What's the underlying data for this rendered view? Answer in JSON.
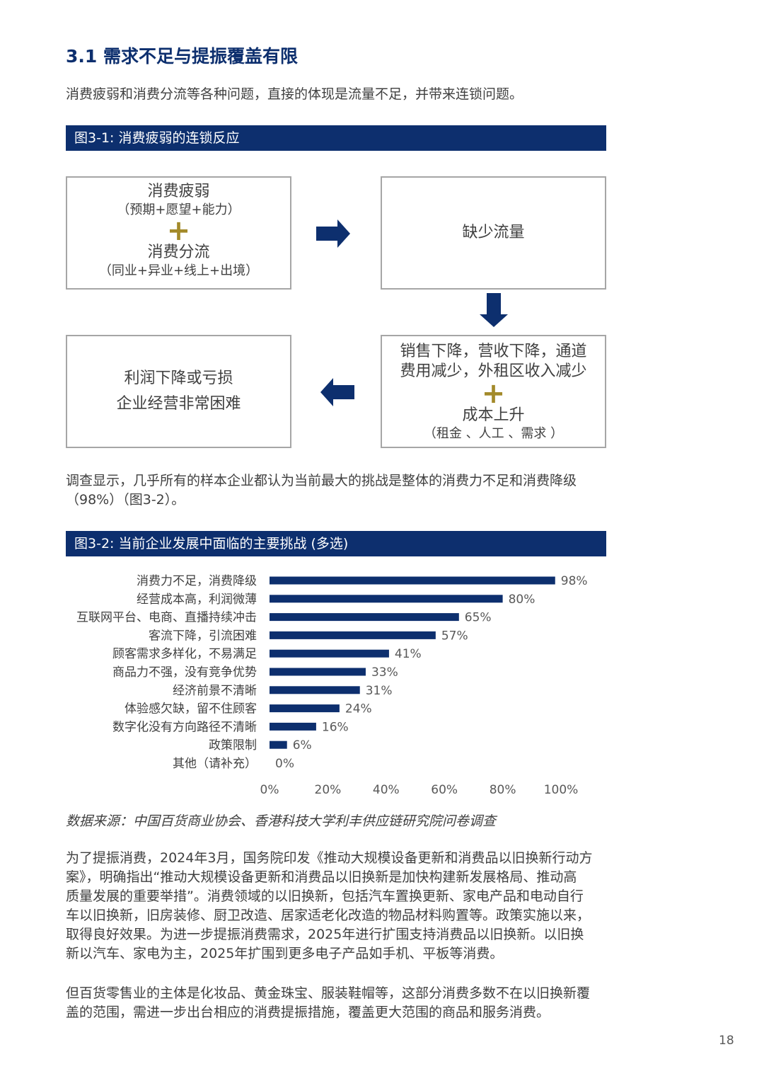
{
  "section_title": "3.1 需求不足与提振覆盖有限",
  "intro": "消费疲弱和消费分流等各种问题，直接的体现是流量不足，并带来连锁问题。",
  "figure1": {
    "header": "图3-1: 消费疲弱的连锁反应",
    "box1": {
      "line1": "消费疲弱",
      "line2": "（预期+愿望+能力）",
      "plus": "+",
      "line3": "消费分流",
      "line4": "（同业+异业+线上+出境）"
    },
    "box2": {
      "text": "缺少流量"
    },
    "box3": {
      "line1": "销售下降，营收下降，通道",
      "line2": "费用减少，外租区收入减少",
      "plus": "+",
      "line3": "成本上升",
      "line4": "（租金 、人工 、需求 ）"
    },
    "box4": {
      "line1": "利润下降或亏损",
      "line2": "企业经营非常困难"
    },
    "arrow_color": "#0d2f6e"
  },
  "survey_text": {
    "line1": "调查显示，几乎所有的样本企业都认为当前最大的挑战是整体的消费力不足和消费降级",
    "line2": "（98%）（图3-2）。"
  },
  "figure2": {
    "header": "图3-2: 当前企业发展中面临的主要挑战 (多选)"
  },
  "chart_data": {
    "type": "bar",
    "orientation": "horizontal",
    "categories": [
      "消费力不足，消费降级",
      "经营成本高，利润微薄",
      "互联网平台、电商、直播持续冲击",
      "客流下降，引流困难",
      "顾客需求多样化，不易满足",
      "商品力不强，没有竞争优势",
      "经济前景不清晰",
      "体验感欠缺，留不住顾客",
      "数字化没有方向路径不清晰",
      "政策限制",
      "其他（请补充）"
    ],
    "values": [
      98,
      80,
      65,
      57,
      41,
      33,
      31,
      24,
      16,
      6,
      0
    ],
    "value_labels": [
      "98%",
      "80%",
      "65%",
      "57%",
      "41%",
      "33%",
      "31%",
      "24%",
      "16%",
      "6%",
      "0%"
    ],
    "xlim": [
      0,
      100
    ],
    "x_ticks": [
      "0%",
      "20%",
      "40%",
      "60%",
      "80%",
      "100%"
    ],
    "x_tick_values": [
      0,
      20,
      40,
      60,
      80,
      100
    ],
    "bar_color": "#0d2f6e",
    "grid": false,
    "legend": "none"
  },
  "source_note": "数据来源：中国百货商业协会、香港科技大学利丰供应链研究院问卷调查",
  "para2": [
    "为了提振消费，2024年3月，国务院印发《推动大规模设备更新和消费品以旧换新行动方",
    "案》，明确指出“推动大规模设备更新和消费品以旧换新是加快构建新发展格局、推动高",
    "质量发展的重要举措”。消费领域的以旧换新，包括汽车置换更新、家电产品和电动自行",
    "车以旧换新，旧房装修、厨卫改造、居家适老化改造的物品材料购置等。政策实施以来，",
    "取得良好效果。为进一步提振消费需求，2025年进行扩围支持消费品以旧换新。以旧换",
    "新以汽车、家电为主，2025年扩围到更多电子产品如手机、平板等消费。"
  ],
  "para3": [
    "但百货零售业的主体是化妆品、黄金珠宝、服装鞋帽等，这部分消费多数不在以旧换新覆",
    "盖的范围，需进一步出台相应的消费提振措施，覆盖更大范围的商品和服务消费。"
  ],
  "page_number": "18"
}
